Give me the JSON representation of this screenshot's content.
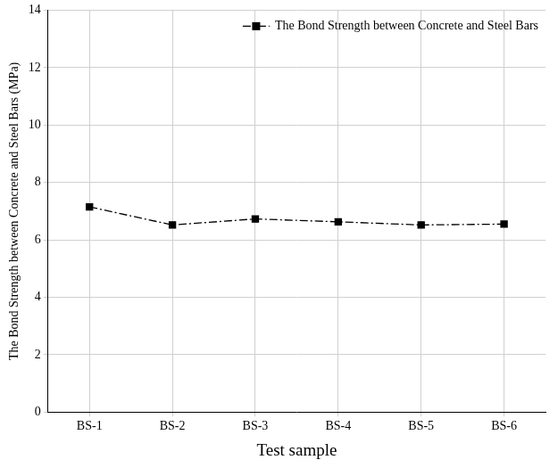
{
  "chart_data": {
    "type": "line",
    "x_label": "Test sample",
    "y_label": "The Bond Strength between Concrete and Steel Bars (MPa)",
    "categories": [
      "BS-1",
      "BS-2",
      "BS-3",
      "BS-4",
      "BS-5",
      "BS-6"
    ],
    "series": [
      {
        "name": "The Bond Strength between Concrete and Steel Bars",
        "color": "#000000",
        "marker": "square",
        "line_style": "dashdot",
        "values": [
          7.15,
          6.52,
          6.73,
          6.63,
          6.52,
          6.55
        ]
      }
    ],
    "ylim": [
      0,
      14
    ],
    "yticks": [
      0,
      2,
      4,
      6,
      8,
      10,
      12,
      14
    ],
    "grid": true,
    "legend": "upper right"
  }
}
